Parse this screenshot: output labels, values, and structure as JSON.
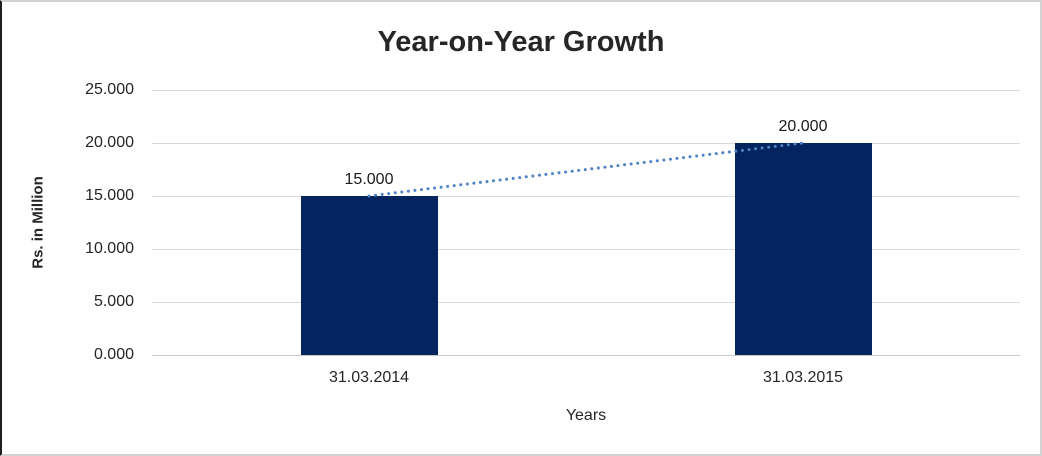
{
  "chart_data": {
    "type": "bar",
    "title": "Year-on-Year Growth",
    "xlabel": "Years",
    "ylabel": "Rs. in Million",
    "categories": [
      "31.03.2014",
      "31.03.2015"
    ],
    "values": [
      15.0,
      20.0
    ],
    "data_labels": [
      "15.000",
      "20.000"
    ],
    "ytick_values": [
      0,
      5,
      10,
      15,
      20,
      25
    ],
    "ytick_labels": [
      "0.000",
      "5.000",
      "10.000",
      "15.000",
      "20.000",
      "25.000"
    ],
    "ylim": [
      0,
      25
    ],
    "grid": true,
    "legend": "none",
    "bar_color": "#03245f",
    "trendline": {
      "type": "linear",
      "style": "dotted",
      "color": "#4d82c4"
    },
    "gridline_color": "#d9d9d9",
    "text_color": "#262626"
  }
}
